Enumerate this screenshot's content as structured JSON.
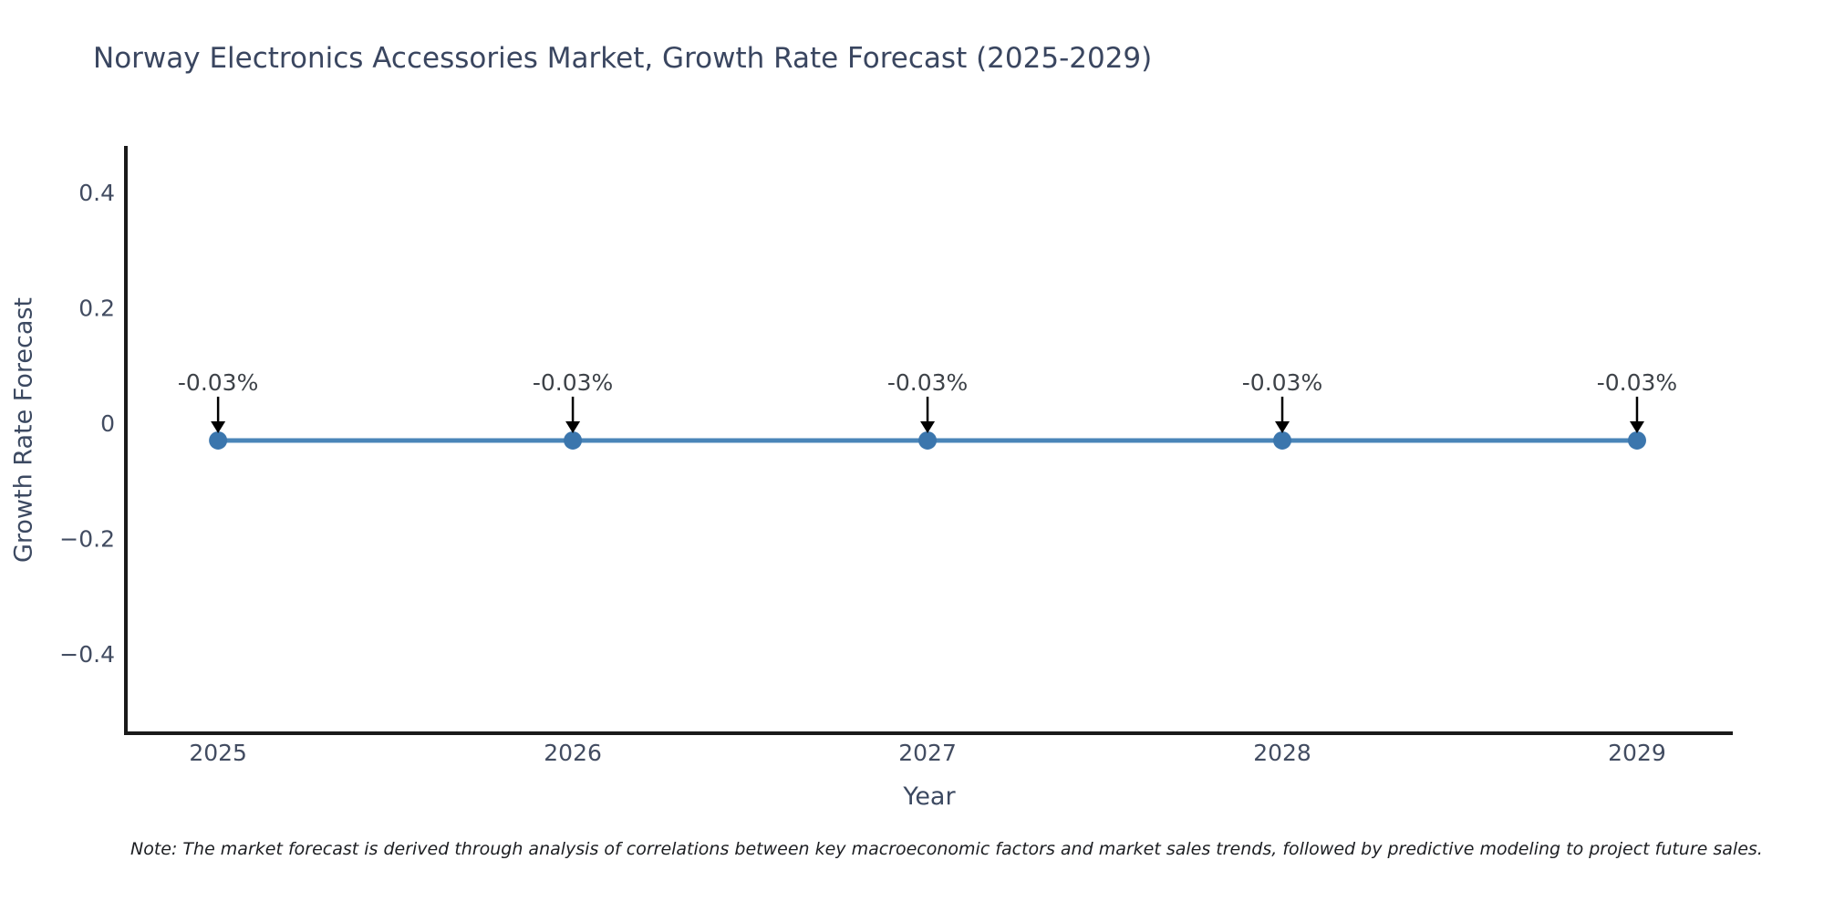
{
  "title": {
    "text": "Norway Electronics Accessories Market, Growth Rate Forecast (2025-2029)",
    "color": "#3a4660"
  },
  "note": {
    "text": "Note: The market forecast is derived through analysis of correlations between key macroeconomic factors and market sales trends, followed by predictive modeling to project future sales."
  },
  "chart_data": {
    "type": "line",
    "title": "Norway Electronics Accessories Market, Growth Rate Forecast (2025-2029)",
    "xlabel": "Year",
    "ylabel": "Growth Rate Forecast",
    "categories": [
      2025,
      2026,
      2027,
      2028,
      2029
    ],
    "series": [
      {
        "name": "Growth Rate Forecast",
        "values": [
          -0.03,
          -0.03,
          -0.03,
          -0.03,
          -0.03
        ],
        "unit": "%"
      }
    ],
    "point_labels": [
      "-0.03%",
      "-0.03%",
      "-0.03%",
      "-0.03%",
      "-0.03%"
    ],
    "yticks": [
      0.4,
      0.2,
      0,
      -0.2,
      -0.4
    ],
    "ylim": [
      -0.538,
      0.481
    ],
    "xlim": [
      2024.74,
      2029.27
    ],
    "grid": false,
    "legend": false,
    "annotation_arrows": true,
    "colors": {
      "line": "#4a85b8",
      "marker": "#3b76ad",
      "arrow": "#000000",
      "axis": "#1a1a1a"
    }
  }
}
